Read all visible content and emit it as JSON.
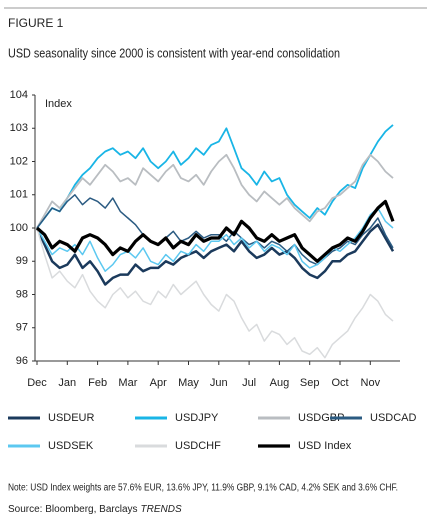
{
  "figure": "FIGURE 1",
  "chart_data": {
    "type": "line",
    "title": "USD seasonality since 2000 is consistent with year-end consolidation",
    "ylabel": "Index",
    "categories": [
      "Dec",
      null,
      null,
      null,
      "Jan",
      null,
      null,
      null,
      "Feb",
      null,
      null,
      null,
      "Mar",
      null,
      null,
      null,
      "Apr",
      null,
      null,
      null,
      "May",
      null,
      null,
      null,
      "Jun",
      null,
      null,
      null,
      "Jul",
      null,
      null,
      null,
      "Aug",
      null,
      null,
      null,
      "Sep",
      null,
      null,
      null,
      "Oct",
      null,
      null,
      null,
      "Nov",
      null,
      null,
      null
    ],
    "ylim": [
      96,
      104
    ],
    "yticks": [
      96,
      97,
      98,
      99,
      100,
      101,
      102,
      103,
      104
    ],
    "grid": false,
    "legend": "bottom",
    "series": [
      {
        "name": "USDEUR",
        "color": "#1b3a5c",
        "width": 2.5,
        "values": [
          100,
          99.5,
          99,
          98.8,
          98.9,
          99.2,
          98.8,
          99,
          98.7,
          98.3,
          98.5,
          98.6,
          98.6,
          98.9,
          98.7,
          98.8,
          98.8,
          99,
          98.9,
          99.1,
          99.2,
          99.3,
          99.1,
          99.3,
          99.4,
          99.5,
          99.3,
          99.6,
          99.3,
          99.1,
          99.2,
          99.4,
          99.2,
          99.3,
          99.1,
          98.8,
          98.6,
          98.5,
          98.7,
          99,
          99,
          99.2,
          99.3,
          99.6,
          99.9,
          100.1,
          99.7,
          99.3
        ]
      },
      {
        "name": "USDJPY",
        "color": "#19b5e6",
        "width": 1.8,
        "values": [
          100,
          100.3,
          100.6,
          100.5,
          100.9,
          101.3,
          101.6,
          101.8,
          102.1,
          102.3,
          102.4,
          102.2,
          102.3,
          102.1,
          102.4,
          102,
          101.8,
          102,
          102.3,
          101.9,
          102.1,
          102.4,
          102.2,
          102.5,
          102.6,
          103,
          102.4,
          101.8,
          101.6,
          101.3,
          101.7,
          101.4,
          101.5,
          101,
          100.7,
          100.5,
          100.3,
          100.6,
          100.4,
          100.8,
          101.1,
          101.3,
          101.2,
          101.8,
          102.2,
          102.6,
          102.9,
          103.1
        ]
      },
      {
        "name": "USDGBP",
        "color": "#b9bdc1",
        "width": 1.8,
        "values": [
          100,
          100.4,
          100.8,
          100.6,
          100.9,
          101.2,
          101.5,
          101.3,
          101.6,
          101.9,
          101.7,
          101.4,
          101.5,
          101.3,
          101.8,
          101.6,
          101.4,
          101.7,
          101.9,
          101.5,
          101.4,
          101.6,
          101.3,
          101.7,
          102,
          102.2,
          101.8,
          101.3,
          101,
          100.8,
          101.1,
          100.9,
          100.7,
          100.9,
          100.6,
          100.4,
          100.2,
          100.5,
          100.6,
          100.9,
          101,
          101.2,
          101.4,
          101.9,
          102.2,
          102,
          101.7,
          101.5
        ]
      },
      {
        "name": "USDCAD",
        "color": "#2b5b82",
        "width": 1.5,
        "values": [
          100,
          100.3,
          100.6,
          100.5,
          100.8,
          101,
          100.7,
          100.9,
          100.8,
          100.6,
          100.9,
          100.5,
          100.3,
          100.1,
          99.8,
          99.6,
          99.5,
          99.7,
          99.9,
          99.6,
          99.7,
          99.9,
          99.7,
          99.8,
          99.8,
          99.6,
          99.9,
          99.7,
          99.5,
          99.6,
          99.4,
          99.6,
          99.5,
          99.3,
          99.5,
          99.2,
          99,
          98.9,
          99.1,
          99.3,
          99.4,
          99.6,
          99.5,
          99.8,
          100,
          100.3,
          99.8,
          99.4
        ]
      },
      {
        "name": "USDSEK",
        "color": "#5cc8f0",
        "width": 1.5,
        "values": [
          100,
          99.6,
          99.2,
          99.4,
          99.3,
          99.5,
          99.2,
          99.6,
          99.1,
          98.7,
          98.9,
          99.2,
          99.3,
          99.1,
          99.4,
          99,
          98.9,
          99.2,
          99,
          99.3,
          99.2,
          99.5,
          99.3,
          99.6,
          99.6,
          99.8,
          99.5,
          99.7,
          99.4,
          99.6,
          99.3,
          99.5,
          99.4,
          99.2,
          99.5,
          99,
          98.8,
          98.9,
          99.1,
          99.4,
          99.3,
          99.5,
          99.7,
          100,
          100.4,
          100.6,
          100.2,
          100
        ]
      },
      {
        "name": "USDCHF",
        "color": "#d9dbdd",
        "width": 1.5,
        "values": [
          100,
          99.2,
          98.5,
          98.7,
          98.4,
          98.2,
          98.6,
          98.1,
          97.8,
          97.6,
          98,
          98.2,
          97.9,
          98.1,
          97.8,
          97.7,
          98.1,
          97.9,
          98.3,
          98,
          98.2,
          98.4,
          98,
          97.7,
          97.5,
          98,
          97.8,
          97.3,
          96.9,
          97.1,
          96.6,
          96.9,
          96.8,
          96.5,
          96.7,
          96.3,
          96.2,
          96.4,
          96.1,
          96.5,
          96.7,
          96.9,
          97.3,
          97.6,
          98,
          97.8,
          97.4,
          97.2
        ]
      },
      {
        "name": "USD Index",
        "color": "#000000",
        "width": 3.2,
        "values": [
          100,
          99.8,
          99.4,
          99.6,
          99.5,
          99.3,
          99.7,
          99.8,
          99.7,
          99.5,
          99.2,
          99.4,
          99.3,
          99.6,
          99.8,
          99.6,
          99.5,
          99.7,
          99.4,
          99.6,
          99.5,
          99.8,
          99.6,
          99.7,
          99.7,
          100,
          99.8,
          100.2,
          100,
          99.7,
          99.6,
          99.8,
          99.6,
          99.7,
          99.8,
          99.4,
          99.2,
          99,
          99.2,
          99.4,
          99.5,
          99.7,
          99.6,
          99.9,
          100.3,
          100.6,
          100.8,
          100.2
        ]
      }
    ]
  },
  "note": "Note: USD Index weights are 57.6% EUR, 13.6% JPY, 11.9% GBP, 9.1% CAD, 4.2% SEK and 3.6% CHF.",
  "source": "Source: Bloomberg, Barclays",
  "source_italic": "TRENDS"
}
